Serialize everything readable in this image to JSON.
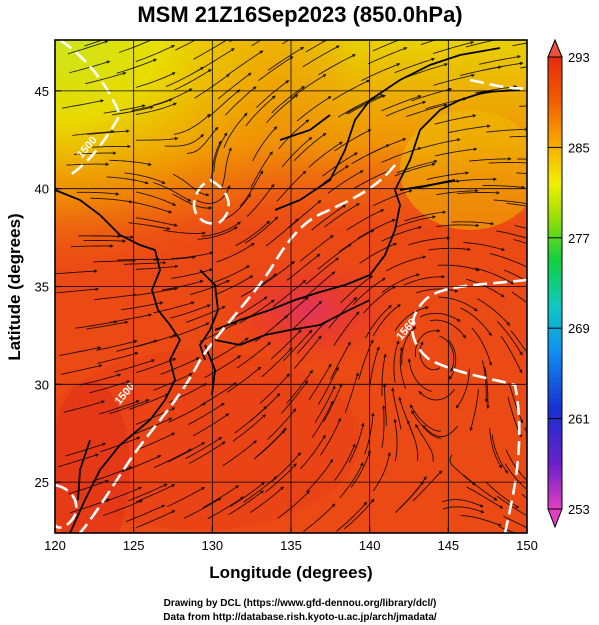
{
  "chart_data": {
    "type": "heatmap",
    "title": "MSM 21Z16Sep2023 (850.0hPa)",
    "xlabel": "Longitude (degrees)",
    "ylabel": "Latitude  (degrees)",
    "xlim": [
      120,
      150
    ],
    "ylim": [
      22.4,
      47.6
    ],
    "x_ticks": [
      120,
      125,
      130,
      135,
      140,
      145,
      150
    ],
    "y_ticks": [
      25,
      30,
      35,
      40,
      45
    ],
    "grid": true,
    "colorbar": {
      "range": [
        253,
        293
      ],
      "ticks": [
        253,
        261,
        269,
        277,
        285,
        293
      ],
      "colors": [
        "#e040c0",
        "#6a20c8",
        "#1830d0",
        "#1090f0",
        "#10c8c0",
        "#10d040",
        "#a0e000",
        "#f0f000",
        "#f8b000",
        "#f06000",
        "#e82a10"
      ]
    },
    "contours": [
      {
        "label": "1500",
        "lon": 122.2,
        "lat": 42.0
      },
      {
        "label": "1500",
        "lon": 124.6,
        "lat": 29.4
      },
      {
        "label": "1560",
        "lon": 142.5,
        "lat": 32.7
      }
    ]
  },
  "credits": {
    "line1": "Drawing by DCL (https://www.gfd-dennou.org/library/dcl/)",
    "line2": "Data from http://database.rish.kyoto-u.ac.jp/arch/jmadata/"
  }
}
